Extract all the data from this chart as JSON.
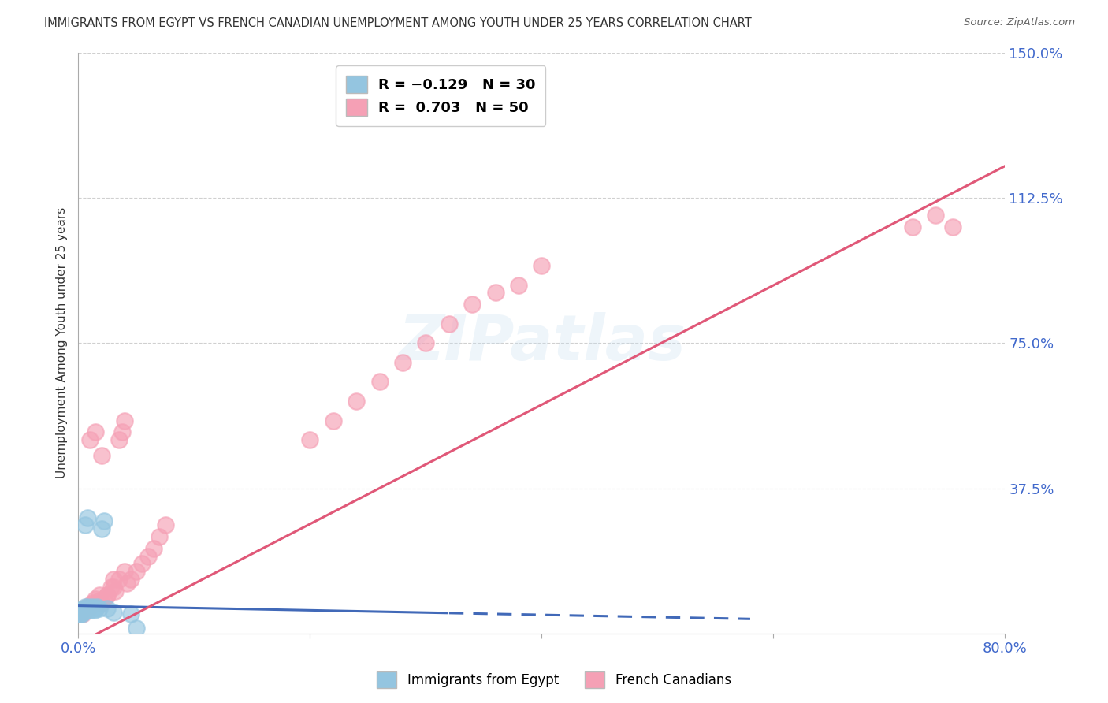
{
  "title": "IMMIGRANTS FROM EGYPT VS FRENCH CANADIAN UNEMPLOYMENT AMONG YOUTH UNDER 25 YEARS CORRELATION CHART",
  "source": "Source: ZipAtlas.com",
  "ylabel_label": "Unemployment Among Youth under 25 years",
  "watermark": "ZIPatlas",
  "blue_scatter_x": [
    0.001,
    0.002,
    0.003,
    0.004,
    0.005,
    0.006,
    0.007,
    0.008,
    0.009,
    0.01,
    0.011,
    0.012,
    0.013,
    0.014,
    0.015,
    0.016,
    0.018,
    0.02,
    0.022,
    0.025,
    0.002,
    0.003,
    0.004,
    0.006,
    0.008,
    0.01,
    0.03,
    0.045,
    0.05,
    0.003
  ],
  "blue_scatter_y": [
    0.05,
    0.06,
    0.05,
    0.055,
    0.06,
    0.07,
    0.065,
    0.07,
    0.065,
    0.06,
    0.065,
    0.07,
    0.065,
    0.06,
    0.065,
    0.07,
    0.065,
    0.27,
    0.29,
    0.065,
    0.05,
    0.06,
    0.055,
    0.28,
    0.3,
    0.065,
    0.055,
    0.05,
    0.015,
    0.055
  ],
  "pink_scatter_x": [
    0.004,
    0.005,
    0.006,
    0.007,
    0.008,
    0.01,
    0.012,
    0.015,
    0.018,
    0.02,
    0.022,
    0.025,
    0.028,
    0.03,
    0.032,
    0.035,
    0.038,
    0.04,
    0.042,
    0.045,
    0.05,
    0.055,
    0.06,
    0.065,
    0.07,
    0.075,
    0.755,
    0.01,
    0.015,
    0.02,
    0.025,
    0.03,
    0.035,
    0.04,
    0.2,
    0.22,
    0.24,
    0.26,
    0.28,
    0.3,
    0.32,
    0.34,
    0.36,
    0.38,
    0.4,
    0.72,
    0.74,
    0.008,
    0.012,
    0.018
  ],
  "pink_scatter_y": [
    0.05,
    0.06,
    0.065,
    0.07,
    0.065,
    0.07,
    0.08,
    0.09,
    0.1,
    0.08,
    0.09,
    0.1,
    0.12,
    0.14,
    0.11,
    0.5,
    0.52,
    0.55,
    0.13,
    0.14,
    0.16,
    0.18,
    0.2,
    0.22,
    0.25,
    0.28,
    1.05,
    0.5,
    0.52,
    0.46,
    0.1,
    0.12,
    0.14,
    0.16,
    0.5,
    0.55,
    0.6,
    0.65,
    0.7,
    0.75,
    0.8,
    0.85,
    0.88,
    0.9,
    0.95,
    1.05,
    1.08,
    0.065,
    0.075,
    0.085
  ],
  "blue_color": "#94C5E0",
  "pink_color": "#F5A0B5",
  "blue_line_color": "#4169b8",
  "pink_line_color": "#e05878",
  "title_color": "#333333",
  "source_color": "#666666",
  "axis_label_color": "#333333",
  "tick_color": "#4169CC",
  "grid_color": "#d0d0d0",
  "background_color": "#ffffff",
  "xlim": [
    0.0,
    0.8
  ],
  "ylim": [
    0.0,
    1.5
  ],
  "xticks": [
    0.0,
    0.2,
    0.4,
    0.6,
    0.8
  ],
  "yticks": [
    0.0,
    0.375,
    0.75,
    1.125,
    1.5
  ],
  "ytick_labels": [
    "",
    "37.5%",
    "75.0%",
    "112.5%",
    "150.0%"
  ],
  "xtick_labels": [
    "0.0%",
    "",
    "",
    "",
    "80.0%"
  ]
}
